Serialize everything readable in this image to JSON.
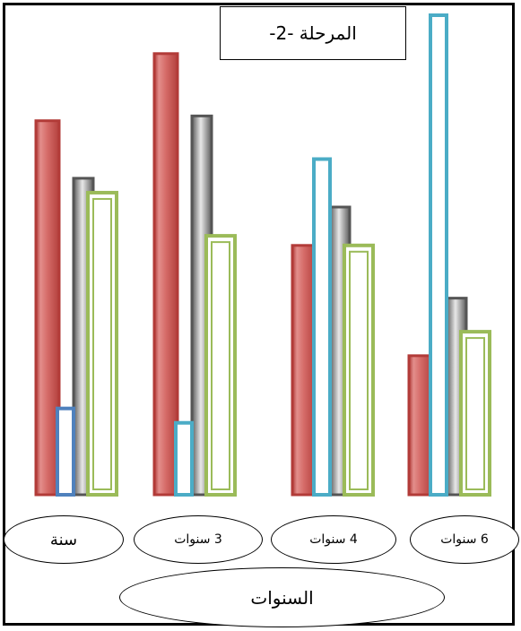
{
  "chart_data": {
    "type": "bar",
    "title": "المرحلة -2-",
    "xlabel": "السنوات",
    "ylabel": "",
    "categories": [
      "سنة",
      "3 سنوات",
      "4 سنوات",
      "6 سنوات"
    ],
    "ylim": [
      0,
      100
    ],
    "grid": false,
    "legend": "none",
    "series": [
      {
        "values": [
          78,
          92,
          52,
          29
        ],
        "color": "#c0504d",
        "style": "gradient-red"
      },
      {
        "values": [
          18,
          15,
          70,
          100
        ],
        "color": "#4bacc6",
        "style": "outline-blue"
      },
      {
        "values": [
          66,
          79,
          60,
          41
        ],
        "color": "#7f7f7f",
        "style": "gradient-gray"
      },
      {
        "values": [
          63,
          54,
          52,
          34
        ],
        "color": "#9bbb59",
        "style": "outline-green"
      }
    ]
  }
}
